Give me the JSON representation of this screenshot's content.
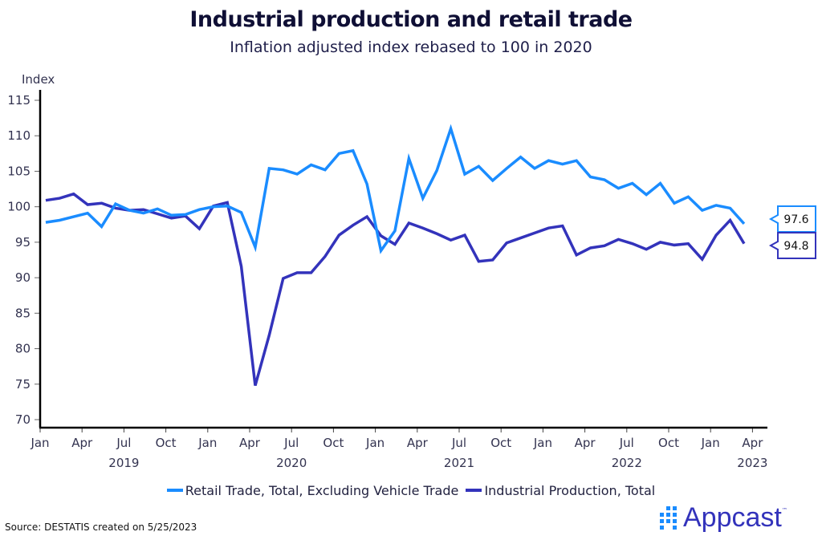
{
  "header": {
    "title": "Industrial production and retail trade",
    "subtitle": "Inflation adjusted index rebased to 100 in 2020"
  },
  "chart_data": {
    "type": "line",
    "title": "Industrial production and retail trade",
    "subtitle": "Inflation adjusted index rebased to 100 in 2020",
    "ylabel": "Index",
    "xlabel": "",
    "ylim": [
      70,
      115
    ],
    "yticks": [
      70,
      75,
      80,
      85,
      90,
      95,
      100,
      105,
      110,
      115
    ],
    "x_start": "2019-01",
    "x_end": "2023-03",
    "xticks": [
      {
        "month": 0,
        "label": "Jan"
      },
      {
        "month": 3,
        "label": "Apr"
      },
      {
        "month": 6,
        "label": "Jul"
      },
      {
        "month": 9,
        "label": "Oct"
      },
      {
        "month": 12,
        "label": "Jan"
      },
      {
        "month": 15,
        "label": "Apr"
      },
      {
        "month": 18,
        "label": "Jul"
      },
      {
        "month": 21,
        "label": "Oct"
      },
      {
        "month": 24,
        "label": "Jan"
      },
      {
        "month": 27,
        "label": "Apr"
      },
      {
        "month": 30,
        "label": "Jul"
      },
      {
        "month": 33,
        "label": "Oct"
      },
      {
        "month": 36,
        "label": "Jan"
      },
      {
        "month": 39,
        "label": "Apr"
      },
      {
        "month": 42,
        "label": "Jul"
      },
      {
        "month": 45,
        "label": "Oct"
      },
      {
        "month": 48,
        "label": "Jan"
      },
      {
        "month": 51,
        "label": "Apr"
      }
    ],
    "year_labels": [
      {
        "month": 6,
        "label": "2019"
      },
      {
        "month": 18,
        "label": "2020"
      },
      {
        "month": 30,
        "label": "2021"
      },
      {
        "month": 42,
        "label": "2022"
      },
      {
        "month": 51,
        "label": "2023"
      }
    ],
    "grid": false,
    "legend_position": "bottom",
    "series": [
      {
        "name": "Retail Trade, Total, Excluding Vehicle Trade",
        "color": "#1a8cff",
        "last_value_label": "97.6",
        "values": [
          97.8,
          98.1,
          98.6,
          99.1,
          97.2,
          100.4,
          99.5,
          99.1,
          99.7,
          98.8,
          98.9,
          99.6,
          100.0,
          100.1,
          99.2,
          94.3,
          105.4,
          105.2,
          104.6,
          105.9,
          105.2,
          107.5,
          107.9,
          103.2,
          93.8,
          96.6,
          106.8,
          101.2,
          105.1,
          111.0,
          104.6,
          105.7,
          103.7,
          105.4,
          107.0,
          105.4,
          106.5,
          106.0,
          106.5,
          104.2,
          103.8,
          102.6,
          103.3,
          101.7,
          103.3,
          100.5,
          101.4,
          99.5,
          100.2,
          99.8,
          97.6
        ]
      },
      {
        "name": "Industrial Production, Total",
        "color": "#3333bb",
        "last_value_label": "94.8",
        "values": [
          100.9,
          101.2,
          101.8,
          100.3,
          100.5,
          99.8,
          99.5,
          99.6,
          99.0,
          98.4,
          98.7,
          96.9,
          100.1,
          100.6,
          91.6,
          74.8,
          81.9,
          89.9,
          90.7,
          90.7,
          93.0,
          96.0,
          97.4,
          98.6,
          95.9,
          94.7,
          97.7,
          97.0,
          96.2,
          95.3,
          96.0,
          92.3,
          92.5,
          94.9,
          95.6,
          96.3,
          97.0,
          97.3,
          93.2,
          94.2,
          94.5,
          95.4,
          94.8,
          94.0,
          95.0,
          94.6,
          94.8,
          92.6,
          96.0,
          98.1,
          94.8
        ]
      }
    ]
  },
  "footer": {
    "source": "Source: DESTATIS created on 5/25/2023",
    "logo_text": "Appcast",
    "logo_tm": "™",
    "logo_icon": "grid-dots-icon"
  }
}
